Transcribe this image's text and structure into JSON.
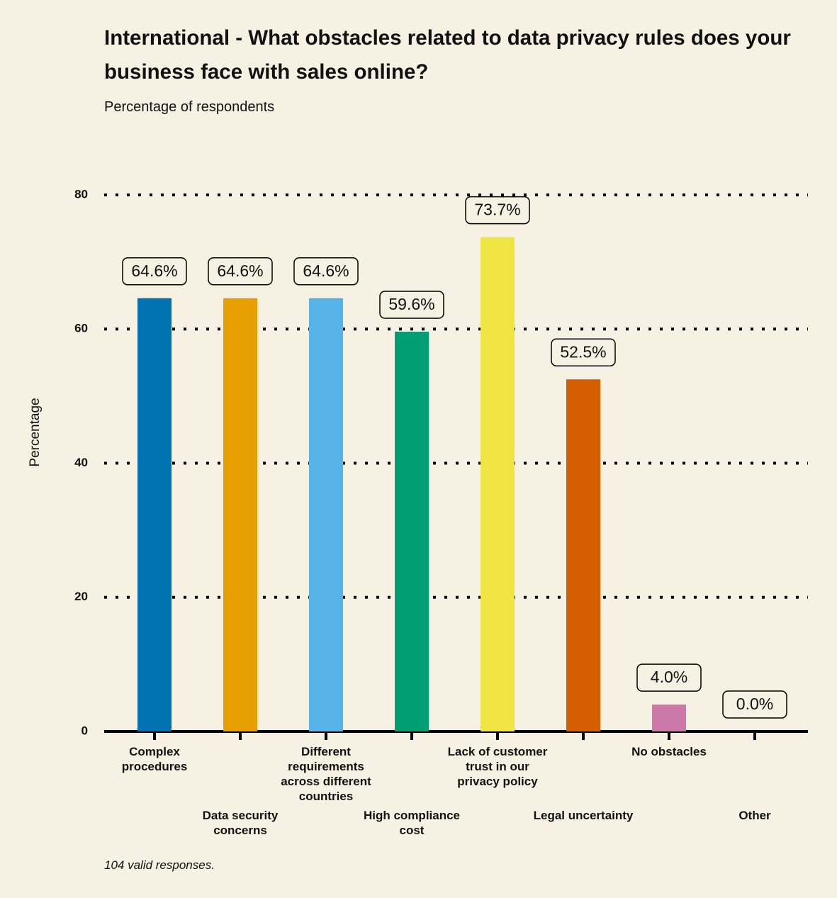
{
  "chart_data": {
    "type": "bar",
    "title": "International - What obstacles related to data privacy rules does your business face with sales online?",
    "subtitle": "Percentage of respondents",
    "y_label": "Percentage",
    "footnote": "104 valid responses.",
    "categories": [
      "Complex procedures",
      "Data security concerns",
      "Different requirements across different countries",
      "High compliance cost",
      "Lack of customer trust in our privacy policy",
      "Legal uncertainty",
      "No obstacles",
      "Other"
    ],
    "values": [
      64.6,
      64.6,
      64.6,
      59.6,
      73.7,
      52.5,
      4.0,
      0.0
    ],
    "value_labels": [
      "64.6%",
      "64.6%",
      "64.6%",
      "59.6%",
      "73.7%",
      "52.5%",
      "4.0%",
      "0.0%"
    ],
    "colors": [
      "#0072b2",
      "#e69f00",
      "#56b4e9",
      "#009e73",
      "#f0e442",
      "#d55e00",
      "#cc79a7",
      "#000000"
    ],
    "ylim": [
      0,
      80
    ],
    "yticks": [
      0,
      20,
      40,
      60,
      80
    ],
    "grid": true
  }
}
